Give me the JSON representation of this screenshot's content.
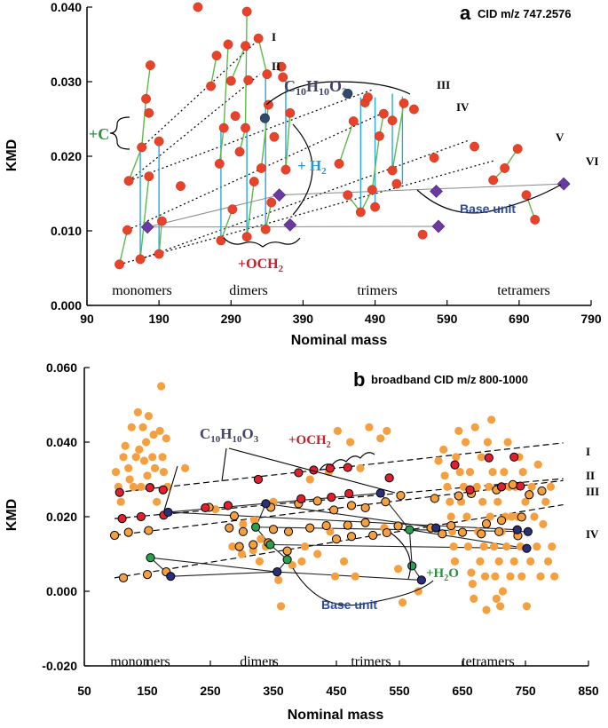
{
  "colors": {
    "red": "#e8432a",
    "orange": "#f5a040",
    "orange_red": "#e02030",
    "navy": "#2a2f7a",
    "green_dot": "#28a050",
    "purple": "#6a3aa0",
    "cyan": "#29a9e0",
    "green_line": "#5fb84a",
    "label_green": "#2a9040",
    "label_red": "#c0202a",
    "label_blue": "#2b4aa0",
    "label_cyan": "#1a9ad6",
    "label_dark": "#444466"
  },
  "chart_data": [
    {
      "type": "scatter",
      "panel": "a",
      "title": "CID m/z 747.2576",
      "xlabel": "Nominal mass",
      "ylabel": "KMD",
      "xlim": [
        90,
        790
      ],
      "ylim": [
        0.0,
        0.04
      ],
      "xticks": [
        "90",
        "190",
        "290",
        "390",
        "490",
        "590",
        "690",
        "790"
      ],
      "yticks": [
        "0.000",
        "0.010",
        "0.020",
        "0.030",
        "0.040"
      ],
      "group_labels": [
        "monomers",
        "dimers",
        "trimers",
        "tetramers"
      ],
      "series_labels": [
        "I",
        "II",
        "III",
        "IV",
        "V",
        "VI"
      ],
      "annotations": {
        "plus_c": "+C",
        "c10h10o3": "C",
        "c10_sub": "10",
        "h_letter": "H",
        "h10_sub": "10",
        "o_letter": "O",
        "o3_sub": "3",
        "plus_h2": "+ H",
        "h2_sub": "2",
        "plus_och2": "+OCH",
        "och2_sub": "2",
        "base_unit": "Base unit"
      },
      "red_points": [
        [
          135,
          0.0055
        ],
        [
          146,
          0.0101
        ],
        [
          148,
          0.0167
        ],
        [
          164,
          0.0062
        ],
        [
          166,
          0.0212
        ],
        [
          172,
          0.0277
        ],
        [
          176,
          0.0258
        ],
        [
          178,
          0.0322
        ],
        [
          190,
          0.0069
        ],
        [
          190,
          0.022
        ],
        [
          194,
          0.0113
        ],
        [
          176,
          0.0173
        ],
        [
          220,
          0.016
        ],
        [
          244,
          0.04
        ],
        [
          262,
          0.0294
        ],
        [
          270,
          0.0335
        ],
        [
          274,
          0.019
        ],
        [
          280,
          0.0238
        ],
        [
          286,
          0.035
        ],
        [
          276,
          0.0087
        ],
        [
          290,
          0.0301
        ],
        [
          292,
          0.0129
        ],
        [
          296,
          0.0254
        ],
        [
          310,
          0.0348
        ],
        [
          312,
          0.0394
        ],
        [
          302,
          0.0206
        ],
        [
          310,
          0.0238
        ],
        [
          312,
          0.0092
        ],
        [
          314,
          0.0302
        ],
        [
          322,
          0.0166
        ],
        [
          328,
          0.0358
        ],
        [
          332,
          0.0184
        ],
        [
          338,
          0.0102
        ],
        [
          340,
          0.031
        ],
        [
          342,
          0.0269
        ],
        [
          350,
          0.0226
        ],
        [
          346,
          0.0138
        ],
        [
          360,
          0.032
        ],
        [
          362,
          0.0306
        ],
        [
          372,
          0.0258
        ],
        [
          366,
          0.0182
        ],
        [
          476,
          0.0272
        ],
        [
          440,
          0.019
        ],
        [
          452,
          0.0148
        ],
        [
          470,
          0.0125
        ],
        [
          460,
          0.0247
        ],
        [
          480,
          0.0279
        ],
        [
          486,
          0.0155
        ],
        [
          490,
          0.0132
        ],
        [
          496,
          0.0227
        ],
        [
          502,
          0.0257
        ],
        [
          514,
          0.0248
        ],
        [
          514,
          0.0181
        ],
        [
          520,
          0.0163
        ],
        [
          530,
          0.0271
        ],
        [
          544,
          0.0263
        ],
        [
          556,
          0.0095
        ],
        [
          572,
          0.0198
        ],
        [
          628,
          0.0213
        ],
        [
          654,
          0.0168
        ],
        [
          670,
          0.0184
        ],
        [
          688,
          0.021
        ],
        [
          700,
          0.0148
        ],
        [
          712,
          0.0115
        ]
      ],
      "navy_points": [
        [
          452,
          0.0284
        ],
        [
          337,
          0.0251
        ]
      ],
      "purple_diamonds": [
        [
          174,
          0.0105
        ],
        [
          357,
          0.0148
        ],
        [
          372,
          0.0108
        ],
        [
          575,
          0.0153
        ],
        [
          578,
          0.0106
        ],
        [
          752,
          0.0163
        ]
      ]
    },
    {
      "type": "scatter",
      "panel": "b",
      "title": "broadband CID m/z 800-1000",
      "xlabel": "Nominal mass",
      "ylabel": "KMD",
      "xlim": [
        50,
        850
      ],
      "ylim": [
        -0.02,
        0.06
      ],
      "xticks": [
        "50",
        "150",
        "250",
        "350",
        "450",
        "550",
        "650",
        "750",
        "850"
      ],
      "yticks": [
        "-0.020",
        "0.000",
        "0.020",
        "0.040",
        "0.060"
      ],
      "group_labels": [
        "monomers",
        "dimers",
        "trimers",
        "tetramers"
      ],
      "series_labels": [
        "I",
        "II",
        "III",
        "IV"
      ],
      "annotations": {
        "c10h10o3": "C",
        "c10_sub": "10",
        "h_letter": "H",
        "h10_sub": "10",
        "o_letter": "O",
        "o3_sub": "3",
        "plus_och2": "+OCH",
        "och2_sub": "2",
        "plus_h2o": "+H",
        "h2o_sub": "2",
        "h2o_o": "O",
        "base_unit": "Base unit"
      },
      "orange_points": [
        [
          100,
          0.032
        ],
        [
          104,
          0.028
        ],
        [
          108,
          0.024
        ],
        [
          112,
          0.036
        ],
        [
          115,
          0.039
        ],
        [
          120,
          0.033
        ],
        [
          122,
          0.03
        ],
        [
          125,
          0.044
        ],
        [
          128,
          0.028
        ],
        [
          132,
          0.036
        ],
        [
          135,
          0.048
        ],
        [
          137,
          0.038
        ],
        [
          140,
          0.028
        ],
        [
          143,
          0.044
        ],
        [
          145,
          0.035
        ],
        [
          148,
          0.04
        ],
        [
          150,
          0.031
        ],
        [
          152,
          0.047
        ],
        [
          155,
          0.028
        ],
        [
          158,
          0.036
        ],
        [
          160,
          0.042
        ],
        [
          162,
          0.033
        ],
        [
          165,
          0.024
        ],
        [
          170,
          0.043
        ],
        [
          172,
          0.055
        ],
        [
          174,
          0.036
        ],
        [
          176,
          0.032
        ],
        [
          180,
          0.041
        ],
        [
          182,
          0.028
        ],
        [
          210,
          0.033
        ],
        [
          258,
          0.022
        ],
        [
          285,
          0.012
        ],
        [
          300,
          0.01
        ],
        [
          302,
          0.018
        ],
        [
          318,
          0.011
        ],
        [
          320,
          0.019
        ],
        [
          328,
          0.008
        ],
        [
          330,
          0.014
        ],
        [
          338,
          0.012
        ],
        [
          350,
          0.024
        ],
        [
          358,
          0.003
        ],
        [
          362,
          -0.004
        ],
        [
          380,
          0.007
        ],
        [
          395,
          0.008
        ],
        [
          400,
          0.012
        ],
        [
          408,
          0.03
        ],
        [
          420,
          0.01
        ],
        [
          438,
          0.032
        ],
        [
          440,
          0.016
        ],
        [
          448,
          0.004
        ],
        [
          452,
          0.043
        ],
        [
          462,
          0.008
        ],
        [
          472,
          0.04
        ],
        [
          480,
          0.004
        ],
        [
          488,
          0.033
        ],
        [
          502,
          0.044
        ],
        [
          520,
          0.041
        ],
        [
          526,
          0.017
        ],
        [
          530,
          0.043
        ],
        [
          548,
          0.006
        ],
        [
          555,
          -0.003
        ],
        [
          580,
          0.0
        ],
        [
          612,
          0.035
        ],
        [
          620,
          0.038
        ],
        [
          622,
          0.031
        ],
        [
          626,
          0.028
        ],
        [
          630,
          0.024
        ],
        [
          632,
          0.02
        ],
        [
          634,
          0.016
        ],
        [
          636,
          0.012
        ],
        [
          638,
          0.008
        ],
        [
          640,
          0.036
        ],
        [
          644,
          0.043
        ],
        [
          646,
          0.032
        ],
        [
          648,
          0.024
        ],
        [
          652,
          0.028
        ],
        [
          655,
          0.04
        ],
        [
          657,
          0.02
        ],
        [
          659,
          0.012
        ],
        [
          662,
          0.032
        ],
        [
          664,
          0.005
        ],
        [
          666,
          0.002
        ],
        [
          668,
          -0.002
        ],
        [
          670,
          0.044
        ],
        [
          673,
          0.028
        ],
        [
          675,
          0.016
        ],
        [
          678,
          0.008
        ],
        [
          680,
          0.036
        ],
        [
          682,
          0.024
        ],
        [
          684,
          0.012
        ],
        [
          686,
          0.004
        ],
        [
          688,
          -0.005
        ],
        [
          690,
          0.04
        ],
        [
          692,
          0.028
        ],
        [
          694,
          0.02
        ],
        [
          696,
          0.046
        ],
        [
          698,
          0.032
        ],
        [
          700,
          0.012
        ],
        [
          702,
          0.004
        ],
        [
          704,
          -0.002
        ],
        [
          706,
          0.024
        ],
        [
          708,
          0.008
        ],
        [
          710,
          -0.004
        ],
        [
          712,
          0.016
        ],
        [
          714,
          0.0
        ],
        [
          716,
          0.032
        ],
        [
          718,
          0.02
        ],
        [
          720,
          0.012
        ],
        [
          722,
          0.04
        ],
        [
          724,
          0.028
        ],
        [
          726,
          0.004
        ],
        [
          728,
          0.02
        ],
        [
          732,
          0.008
        ],
        [
          734,
          0.028
        ],
        [
          736,
          0.016
        ],
        [
          738,
          0.02
        ],
        [
          740,
          0.036
        ],
        [
          742,
          0.012
        ],
        [
          744,
          0.004
        ],
        [
          746,
          0.032
        ],
        [
          750,
          0.024
        ],
        [
          752,
          -0.004
        ],
        [
          754,
          0.016
        ],
        [
          758,
          0.008
        ],
        [
          760,
          0.028
        ],
        [
          764,
          0.02
        ],
        [
          768,
          0.012
        ],
        [
          770,
          0.034
        ],
        [
          774,
          0.004
        ],
        [
          778,
          0.018
        ],
        [
          782,
          0.024
        ],
        [
          786,
          0.008
        ],
        [
          790,
          0.028
        ],
        [
          792,
          0.012
        ],
        [
          796,
          0.004
        ]
      ],
      "red_points": [
        [
          106,
          0.0265
        ],
        [
          154,
          0.0278
        ],
        [
          175,
          0.0272
        ],
        [
          326,
          0.03
        ],
        [
          390,
          0.0318
        ],
        [
          414,
          0.0325
        ],
        [
          440,
          0.033
        ],
        [
          468,
          0.0332
        ],
        [
          534,
          0.0304
        ],
        [
          638,
          0.0339
        ],
        [
          692,
          0.0358
        ],
        [
          732,
          0.036
        ],
        [
          242,
          0.0224
        ],
        [
          278,
          0.023
        ],
        [
          110,
          0.0195
        ],
        [
          140,
          0.02
        ],
        [
          176,
          0.0204
        ],
        [
          394,
          0.0248
        ],
        [
          442,
          0.0252
        ],
        [
          470,
          0.0262
        ],
        [
          662,
          0.0272
        ],
        [
          712,
          0.028
        ],
        [
          742,
          0.0282
        ]
      ],
      "outlined_orange_points": [
        [
          98,
          0.015
        ],
        [
          120,
          0.0158
        ],
        [
          152,
          0.0163
        ],
        [
          248,
          0.0225
        ],
        [
          288,
          0.0202
        ],
        [
          346,
          0.0225
        ],
        [
          390,
          0.0235
        ],
        [
          420,
          0.0242
        ],
        [
          446,
          0.0218
        ],
        [
          474,
          0.023
        ],
        [
          496,
          0.0224
        ],
        [
          528,
          0.024
        ],
        [
          552,
          0.0257
        ],
        [
          606,
          0.0249
        ],
        [
          644,
          0.0256
        ],
        [
          664,
          0.0262
        ],
        [
          704,
          0.0272
        ],
        [
          730,
          0.0286
        ],
        [
          756,
          0.0259
        ],
        [
          776,
          0.0269
        ],
        [
          112,
          0.0036
        ],
        [
          150,
          0.0045
        ],
        [
          180,
          0.0052
        ],
        [
          296,
          0.012
        ],
        [
          318,
          0.0125
        ],
        [
          342,
          0.013
        ],
        [
          372,
          0.0108
        ],
        [
          450,
          0.014
        ],
        [
          474,
          0.0147
        ],
        [
          508,
          0.015
        ],
        [
          530,
          0.0157
        ],
        [
          600,
          0.017
        ],
        [
          632,
          0.0176
        ],
        [
          688,
          0.0181
        ],
        [
          712,
          0.019
        ],
        [
          744,
          0.0199
        ],
        [
          280,
          0.017
        ],
        [
          302,
          0.016
        ],
        [
          350,
          0.0166
        ],
        [
          374,
          0.016
        ],
        [
          408,
          0.017
        ],
        [
          434,
          0.0176
        ],
        [
          468,
          0.0177
        ],
        [
          496,
          0.0184
        ],
        [
          548,
          0.0175
        ],
        [
          618,
          0.0154
        ],
        [
          650,
          0.0158
        ],
        [
          680,
          0.0154
        ],
        [
          708,
          0.016
        ],
        [
          738,
          0.0149
        ]
      ],
      "navy_points": [
        [
          183,
          0.0212
        ],
        [
          187,
          0.004
        ],
        [
          338,
          0.0235
        ],
        [
          356,
          0.0052
        ],
        [
          520,
          0.0263
        ],
        [
          585,
          0.003
        ],
        [
          608,
          0.017
        ],
        [
          737,
          0.0165
        ],
        [
          754,
          0.016
        ],
        [
          752,
          0.0115
        ]
      ],
      "green_points": [
        [
          155,
          0.009
        ],
        [
          322,
          0.0172
        ],
        [
          345,
          0.0125
        ],
        [
          372,
          0.0085
        ],
        [
          566,
          0.0165
        ],
        [
          570,
          0.0068
        ]
      ]
    }
  ]
}
